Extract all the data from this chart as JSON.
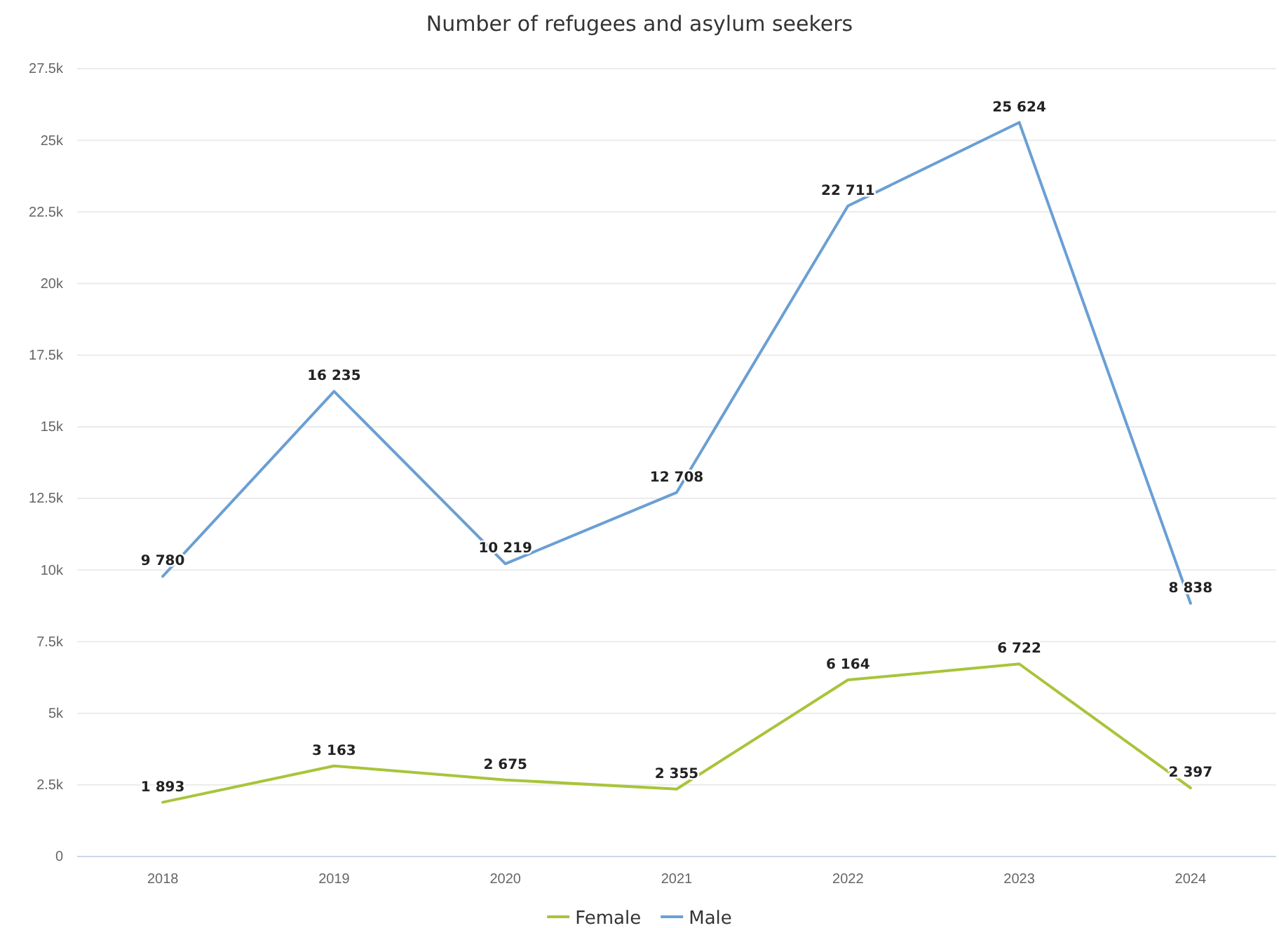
{
  "chart_data": {
    "type": "line",
    "title": "Number of refugees and asylum seekers",
    "categories": [
      "2018",
      "2019",
      "2020",
      "2021",
      "2022",
      "2023",
      "2024"
    ],
    "series": [
      {
        "name": "Female",
        "color": "#a8c43a",
        "values": [
          1893,
          3163,
          2675,
          2355,
          6164,
          6722,
          2397
        ],
        "value_labels": [
          "1 893",
          "3 163",
          "2 675",
          "2 355",
          "6 164",
          "6 722",
          "2 397"
        ]
      },
      {
        "name": "Male",
        "color": "#6a9fd4",
        "values": [
          9780,
          16235,
          10219,
          12708,
          22711,
          25624,
          8838
        ],
        "value_labels": [
          "9 780",
          "16 235",
          "10 219",
          "12 708",
          "22 711",
          "25 624",
          "8 838"
        ]
      }
    ],
    "ylim": [
      0,
      27500
    ],
    "yticks": [
      0,
      {
        "value": 2500,
        "label": "2.5k"
      },
      {
        "value": 5000,
        "label": "5k"
      },
      {
        "value": 7500,
        "label": "7.5k"
      },
      {
        "value": 10000,
        "label": "10k"
      },
      {
        "value": 12500,
        "label": "12.5k"
      },
      {
        "value": 15000,
        "label": "15k"
      },
      {
        "value": 17500,
        "label": "17.5k"
      },
      {
        "value": 20000,
        "label": "20k"
      },
      {
        "value": 22500,
        "label": "22.5k"
      },
      {
        "value": 25000,
        "label": "25k"
      },
      {
        "value": 27500,
        "label": "27.5k"
      }
    ],
    "grid": "y",
    "legend": "bottom",
    "marker": "none",
    "line_style": "solid"
  }
}
